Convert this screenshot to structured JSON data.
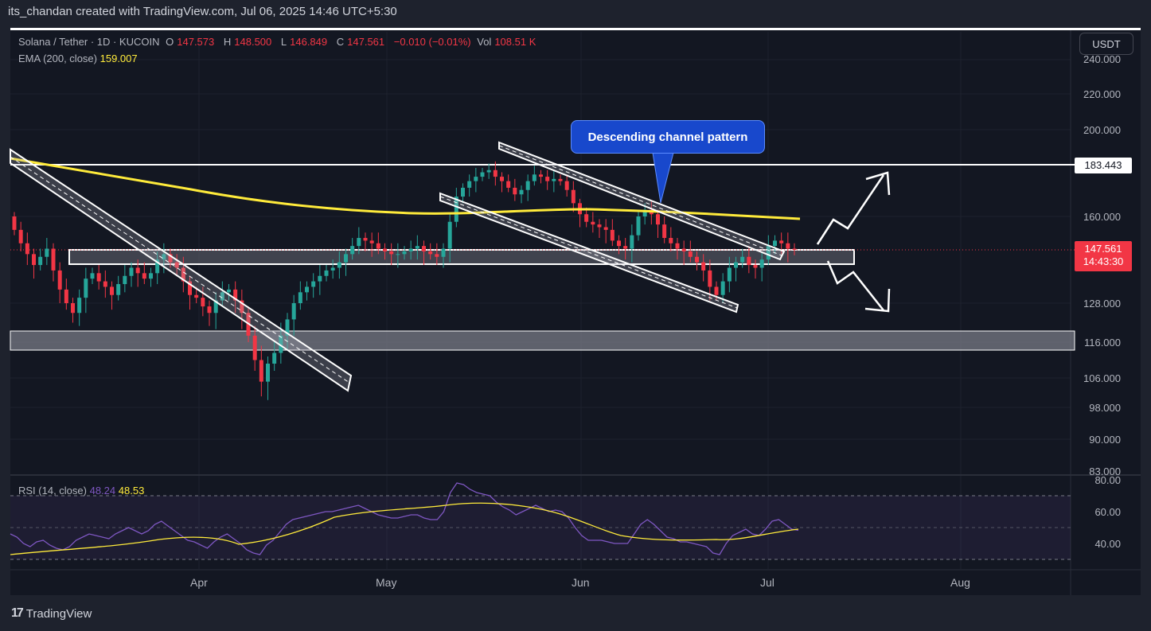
{
  "caption": "its_chandan created with TradingView.com, Jul 06, 2025 14:46 UTC+5:30",
  "legend": {
    "symbol": "Solana / Tether · 1D · KUCOIN",
    "o_label": "O",
    "o_value": "147.573",
    "h_label": "H",
    "h_value": "148.500",
    "l_label": "L",
    "l_value": "146.849",
    "c_label": "C",
    "c_value": "147.561",
    "change": "−0.010 (−0.01%)",
    "vol_label": "Vol",
    "vol_value": "108.51 K"
  },
  "ema_legend": {
    "label": "EMA (200, close)",
    "value": "159.007"
  },
  "rsi_legend": {
    "label": "RSI (14, close)",
    "rsi_value": "48.24",
    "ma_value": "48.53"
  },
  "currency_button": "USDT",
  "price_axis": [
    "240.000",
    "220.000",
    "200.000",
    "160.000",
    "128.000",
    "116.000",
    "106.000",
    "98.000",
    "90.000",
    "83.000"
  ],
  "resistance_tag": "183.443",
  "last_price_tag": {
    "price": "147.561",
    "countdown": "14:43:30"
  },
  "rsi_axis": [
    "80.00",
    "60.00",
    "40.00"
  ],
  "time_axis": [
    "Apr",
    "May",
    "Jun",
    "Jul",
    "Aug"
  ],
  "callout": "Descending channel pattern",
  "footer": {
    "brand": "TradingView"
  },
  "colors": {
    "up": "#26a69a",
    "down": "#f23645",
    "ema": "#ffeb3b",
    "rsi": "#7e57c2",
    "background": "#131722"
  },
  "chart_data": {
    "type": "candlestick",
    "symbol": "SOL/USDT",
    "interval": "1D",
    "exchange": "KUCOIN",
    "ohlc_last": {
      "open": 147.573,
      "high": 148.5,
      "low": 146.849,
      "close": 147.561
    },
    "ema200_last": 159.007,
    "rsi_last": 48.24,
    "rsi_ma_last": 48.53,
    "resistance": 183.443,
    "y_range": [
      83,
      240
    ],
    "closes": [
      155,
      150,
      146,
      142,
      145,
      148,
      140,
      133,
      128,
      125,
      130,
      137,
      139,
      136,
      134,
      131,
      135,
      138,
      141,
      139,
      137,
      139,
      144,
      146,
      143,
      141,
      136,
      131,
      130,
      127,
      125,
      129,
      132,
      133,
      129,
      125,
      118,
      111,
      105,
      110,
      113,
      118,
      123,
      128,
      132,
      134,
      136,
      138,
      140,
      141,
      143,
      146,
      149,
      152,
      151,
      150,
      148,
      147,
      146,
      146,
      147,
      148,
      149,
      147,
      146,
      145,
      148,
      158,
      169,
      173,
      176,
      178,
      180,
      181,
      178,
      176,
      173,
      170,
      172,
      176,
      179,
      178,
      176,
      177,
      176,
      172,
      166,
      161,
      158,
      157,
      156,
      155,
      151,
      149,
      148,
      153,
      160,
      163,
      161,
      157,
      152,
      150,
      148,
      147,
      145,
      143,
      140,
      134,
      131,
      136,
      141,
      143,
      145,
      142,
      141,
      144,
      149,
      151,
      150,
      148,
      147.561
    ],
    "rsi": [
      46,
      44,
      40,
      38,
      41,
      42,
      39,
      37,
      36,
      38,
      42,
      44,
      46,
      45,
      44,
      43,
      46,
      48,
      50,
      48,
      46,
      48,
      52,
      54,
      51,
      48,
      45,
      42,
      41,
      39,
      37,
      41,
      44,
      46,
      43,
      40,
      36,
      34,
      33,
      39,
      42,
      47,
      52,
      55,
      56,
      57,
      58,
      59,
      60,
      60,
      61,
      62,
      63,
      64,
      62,
      60,
      58,
      57,
      56,
      56,
      57,
      58,
      58,
      56,
      55,
      55,
      60,
      72,
      78,
      77,
      74,
      72,
      71,
      70,
      66,
      63,
      61,
      58,
      60,
      62,
      64,
      62,
      60,
      61,
      60,
      56,
      50,
      45,
      42,
      42,
      42,
      41,
      40,
      40,
      40,
      46,
      52,
      55,
      52,
      48,
      44,
      43,
      41,
      41,
      40,
      39,
      38,
      34,
      33,
      40,
      45,
      47,
      49,
      46,
      45,
      49,
      54,
      55,
      52,
      49,
      48.24
    ]
  }
}
